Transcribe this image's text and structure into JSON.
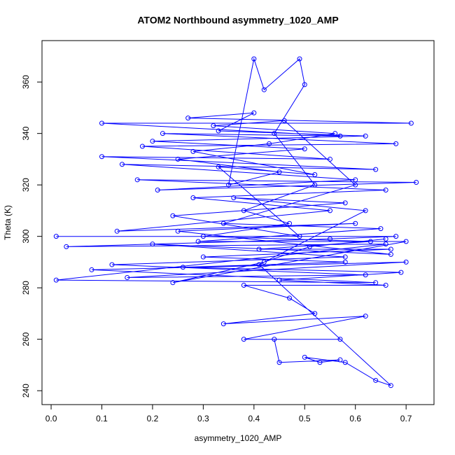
{
  "chart_data": {
    "type": "line",
    "marker": "circle",
    "title": "ATOM2 Northbound asymmetry_1020_AMP",
    "xlabel": "asymmetry_1020_AMP",
    "ylabel": "Theta (K)",
    "color": "#0000ff",
    "xlim": [
      -0.018,
      0.755
    ],
    "ylim": [
      234.6,
      376.1
    ],
    "xticks": [
      {
        "value": 0,
        "label": "0.0"
      },
      0.1,
      0.2,
      0.3,
      0.4,
      0.5,
      0.6,
      0.7
    ],
    "yticks": [
      240,
      260,
      280,
      300,
      320,
      340,
      360
    ],
    "x": [
      0.01,
      0.68,
      0.55,
      0.03,
      0.66,
      0.01,
      0.64,
      0.08,
      0.7,
      0.15,
      0.62,
      0.12,
      0.58,
      0.2,
      0.67,
      0.25,
      0.6,
      0.13,
      0.55,
      0.28,
      0.66,
      0.17,
      0.72,
      0.21,
      0.6,
      0.14,
      0.64,
      0.1,
      0.55,
      0.18,
      0.68,
      0.22,
      0.57,
      0.1,
      0.71,
      0.27,
      0.4,
      0.33,
      0.62,
      0.2,
      0.5,
      0.25,
      0.45,
      0.35,
      0.4,
      0.42,
      0.49,
      0.5,
      0.44,
      0.52,
      0.38,
      0.47,
      0.3,
      0.63,
      0.41,
      0.67,
      0.3,
      0.58,
      0.26,
      0.69,
      0.45,
      0.66,
      0.38,
      0.47,
      0.52,
      0.34,
      0.62,
      0.38,
      0.57,
      0.44,
      0.45,
      0.57,
      0.53,
      0.5,
      0.58,
      0.64,
      0.67,
      0.41,
      0.62,
      0.36,
      0.58,
      0.24,
      0.49,
      0.33,
      0.52,
      0.28,
      0.43,
      0.56,
      0.32,
      0.46,
      0.6,
      0.34,
      0.65,
      0.29,
      0.7,
      0.24,
      0.42,
      0.51,
      0.66
    ],
    "values": [
      300,
      300,
      299,
      296,
      297,
      283,
      282,
      287,
      290,
      284,
      285,
      289,
      292,
      297,
      293,
      302,
      305,
      302,
      310,
      315,
      318,
      322,
      321,
      318,
      322,
      328,
      326,
      331,
      330,
      335,
      336,
      340,
      339,
      344,
      344,
      346,
      348,
      341,
      339,
      337,
      334,
      330,
      325,
      320,
      369,
      357,
      369,
      359,
      340,
      320,
      310,
      305,
      300,
      298,
      295,
      295,
      292,
      290,
      288,
      286,
      283,
      281,
      281,
      276,
      270,
      266,
      269,
      260,
      260,
      260,
      251,
      252,
      251,
      253,
      251,
      244,
      242,
      289,
      310,
      315,
      313,
      308,
      300,
      327,
      324,
      333,
      336,
      340,
      343,
      345,
      320,
      305,
      303,
      298,
      298,
      282,
      290,
      296,
      299
    ]
  }
}
